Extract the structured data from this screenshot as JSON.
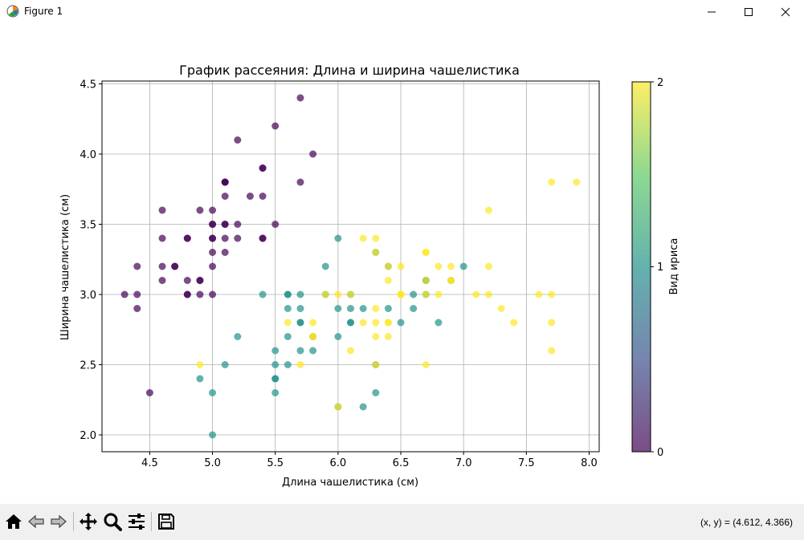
{
  "window": {
    "title": "Figure 1"
  },
  "toolbar": {
    "coords": "(x, y) = (4.612, 4.366)"
  },
  "colorbar": {
    "label": "Вид ириса",
    "ticks": [
      "0",
      "1",
      "2"
    ]
  },
  "colors": {
    "setosa": "#440154",
    "versicolor": "#21918c",
    "virginica": "#fde725"
  },
  "chart_data": {
    "type": "scatter",
    "title": "График рассеяния: Длина и ширина чашелистика",
    "xlabel": "Длина чашелистика (см)",
    "ylabel": "Ширина чашелистика (см)",
    "xlim": [
      4.12,
      8.08
    ],
    "ylim": [
      1.88,
      4.52
    ],
    "xticks": [
      "4.5",
      "5.0",
      "5.5",
      "6.0",
      "6.5",
      "7.0",
      "7.5",
      "8.0"
    ],
    "yticks": [
      "2.0",
      "2.5",
      "3.0",
      "3.5",
      "4.0",
      "4.5"
    ],
    "grid": true,
    "colormap": "viridis",
    "alpha": 0.7,
    "color_range": [
      0,
      2
    ],
    "series": [
      {
        "name": "0",
        "x": [
          5.1,
          4.9,
          4.7,
          4.6,
          5.0,
          5.4,
          4.6,
          5.0,
          4.4,
          4.9,
          5.4,
          4.8,
          4.8,
          4.3,
          5.8,
          5.7,
          5.4,
          5.1,
          5.7,
          5.1,
          5.4,
          5.1,
          4.6,
          5.1,
          4.8,
          5.0,
          5.0,
          5.2,
          5.2,
          4.7,
          4.8,
          5.4,
          5.2,
          5.5,
          4.9,
          5.0,
          5.5,
          4.9,
          4.4,
          5.1,
          5.0,
          4.5,
          4.4,
          5.0,
          5.1,
          4.8,
          5.1,
          4.6,
          5.3,
          5.0
        ],
        "y": [
          3.5,
          3.0,
          3.2,
          3.1,
          3.6,
          3.9,
          3.4,
          3.4,
          2.9,
          3.1,
          3.7,
          3.4,
          3.0,
          3.0,
          4.0,
          4.4,
          3.9,
          3.5,
          3.8,
          3.8,
          3.4,
          3.7,
          3.6,
          3.3,
          3.4,
          3.0,
          3.4,
          3.5,
          3.4,
          3.2,
          3.1,
          3.4,
          4.1,
          4.2,
          3.1,
          3.2,
          3.5,
          3.6,
          3.0,
          3.4,
          3.5,
          2.3,
          3.2,
          3.5,
          3.8,
          3.0,
          3.8,
          3.2,
          3.7,
          3.3
        ]
      },
      {
        "name": "1",
        "x": [
          7.0,
          6.4,
          6.9,
          5.5,
          6.5,
          5.7,
          6.3,
          4.9,
          6.6,
          5.2,
          5.0,
          5.9,
          6.0,
          6.1,
          5.6,
          6.7,
          5.6,
          5.8,
          6.2,
          5.6,
          5.9,
          6.1,
          6.3,
          6.1,
          6.4,
          6.6,
          6.8,
          6.7,
          6.0,
          5.7,
          5.5,
          5.5,
          5.8,
          6.0,
          5.4,
          6.0,
          6.7,
          6.3,
          5.6,
          5.5,
          5.5,
          6.1,
          5.8,
          5.0,
          5.6,
          5.7,
          5.7,
          6.2,
          5.1,
          5.7
        ],
        "y": [
          3.2,
          3.2,
          3.1,
          2.3,
          2.8,
          2.8,
          3.3,
          2.4,
          2.9,
          2.7,
          2.0,
          3.0,
          2.2,
          2.9,
          2.9,
          3.1,
          3.0,
          2.7,
          2.2,
          2.5,
          3.2,
          2.8,
          2.5,
          2.8,
          2.9,
          3.0,
          2.8,
          3.0,
          2.9,
          2.6,
          2.4,
          2.4,
          2.7,
          2.7,
          3.0,
          3.4,
          3.1,
          2.3,
          3.0,
          2.5,
          2.6,
          3.0,
          2.6,
          2.3,
          2.7,
          3.0,
          2.9,
          2.9,
          2.5,
          2.8
        ]
      },
      {
        "name": "2",
        "x": [
          6.3,
          5.8,
          7.1,
          6.3,
          6.5,
          7.6,
          4.9,
          7.3,
          6.7,
          7.2,
          6.5,
          6.4,
          6.8,
          5.7,
          5.8,
          6.4,
          6.5,
          7.7,
          7.7,
          6.0,
          6.9,
          5.6,
          7.7,
          6.3,
          6.7,
          7.2,
          6.2,
          6.1,
          6.4,
          7.2,
          7.4,
          7.9,
          6.4,
          6.3,
          6.1,
          7.7,
          6.3,
          6.4,
          6.0,
          6.9,
          6.7,
          6.9,
          5.8,
          6.8,
          6.7,
          6.7,
          6.3,
          6.5,
          6.2,
          5.9
        ],
        "y": [
          3.3,
          2.7,
          3.0,
          2.9,
          3.0,
          3.0,
          2.5,
          2.9,
          2.5,
          3.6,
          3.2,
          2.7,
          3.0,
          2.5,
          2.8,
          3.2,
          3.0,
          3.8,
          2.6,
          2.2,
          3.2,
          2.8,
          2.8,
          2.7,
          3.3,
          3.2,
          2.8,
          3.0,
          2.8,
          3.0,
          2.8,
          3.8,
          2.8,
          2.8,
          2.6,
          3.0,
          3.4,
          3.1,
          3.0,
          3.1,
          3.1,
          3.1,
          2.7,
          3.2,
          3.3,
          3.0,
          2.5,
          3.0,
          3.4,
          3.0
        ]
      }
    ]
  }
}
